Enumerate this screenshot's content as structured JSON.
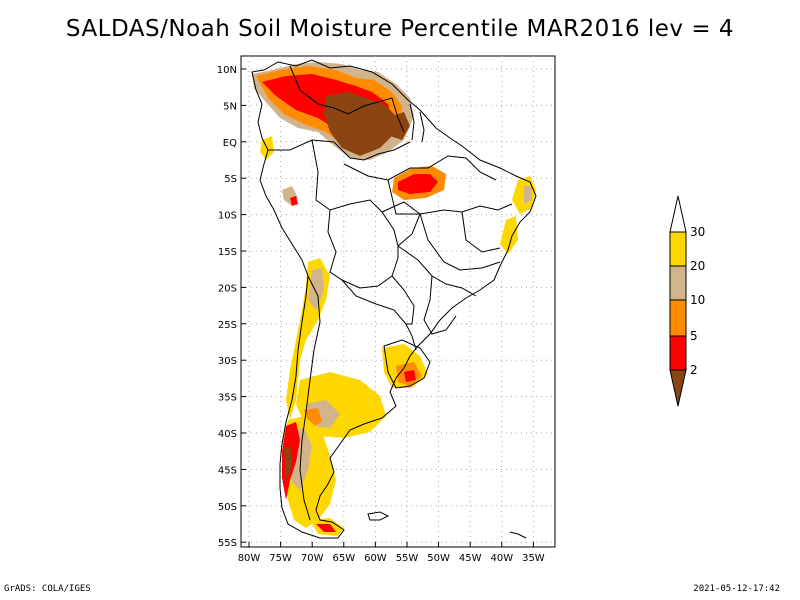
{
  "title": "SALDAS/Noah Soil Moisture Percentile MAR2016 lev = 4",
  "map": {
    "lat_labels": [
      "10N",
      "5N",
      "EQ",
      "5S",
      "10S",
      "15S",
      "20S",
      "25S",
      "30S",
      "35S",
      "40S",
      "45S",
      "50S",
      "55S"
    ],
    "lon_labels": [
      "80W",
      "75W",
      "70W",
      "65W",
      "60W",
      "55W",
      "50W",
      "45W",
      "40W",
      "35W"
    ],
    "grid": true,
    "grid_style": "dotted"
  },
  "legend": {
    "labels": [
      "30",
      "20",
      "10",
      "5",
      "2"
    ],
    "colors": {
      "above_30": "#ffffff",
      "20_30": "#ffd700",
      "10_20": "#d2b48c",
      "5_10": "#ff8c00",
      "2_5": "#ff0000",
      "below_2": "#8b4513"
    }
  },
  "footer": {
    "left": "GrADS: COLA/IGES",
    "right": "2021-05-12-17:42"
  }
}
